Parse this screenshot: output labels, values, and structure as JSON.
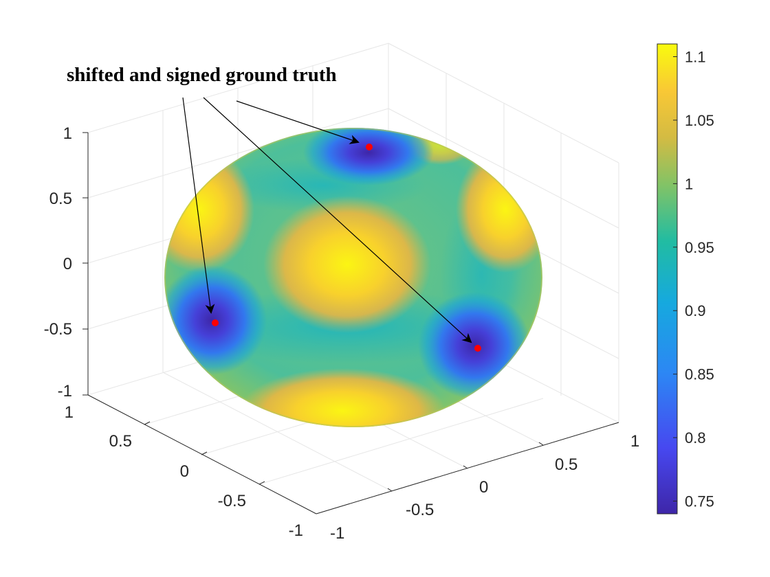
{
  "chart_data": {
    "type": "surface",
    "surface": "unit sphere colored by function value",
    "annotation": "shifted and signed ground truth",
    "axes": {
      "x": {
        "ticks": [
          "-1",
          "-0.5",
          "0",
          "0.5",
          "1"
        ],
        "range": [
          -1,
          1
        ]
      },
      "y": {
        "ticks": [
          "-1",
          "-0.5",
          "0",
          "0.5",
          "1"
        ],
        "range": [
          -1,
          1
        ]
      },
      "z": {
        "ticks": [
          "-1",
          "-0.5",
          "0",
          "0.5",
          "1"
        ],
        "range": [
          -1,
          1
        ]
      }
    },
    "grid": true,
    "colorbar": {
      "colormap": "parula",
      "range": [
        0.74,
        1.11
      ],
      "ticks": [
        "0.75",
        "0.8",
        "0.85",
        "0.9",
        "0.95",
        "1",
        "1.05",
        "1.1"
      ],
      "location": "right"
    },
    "points": [
      {
        "name": "ground-truth-1",
        "color": "#ff0000"
      },
      {
        "name": "ground-truth-2",
        "color": "#ff0000"
      },
      {
        "name": "ground-truth-3",
        "color": "#ff0000"
      }
    ],
    "colors": {
      "min": "#3e26a8",
      "low": "#2c87f4",
      "mid": "#1eb9b0",
      "high": "#f5bb3a",
      "max": "#f9fb0e",
      "marker": "#ff0000"
    }
  }
}
